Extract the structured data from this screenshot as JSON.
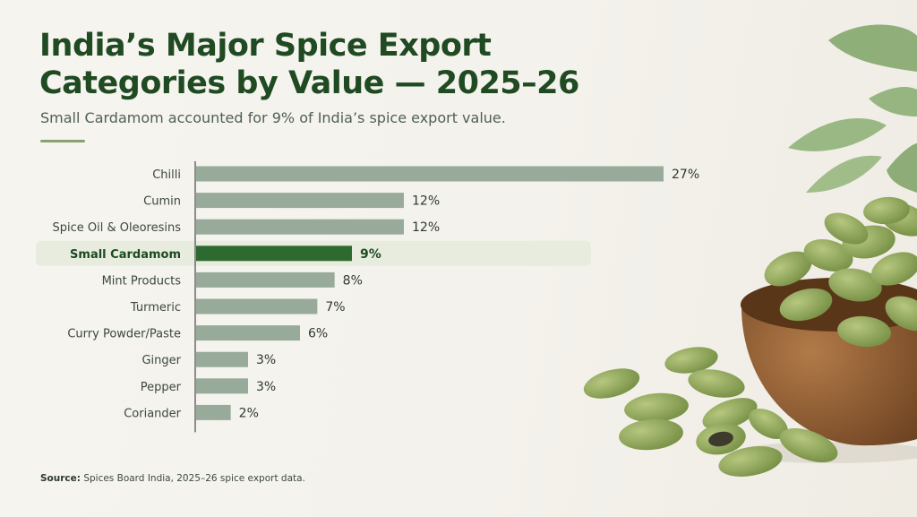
{
  "header": {
    "title": "India’s Major Spice Export Categories by Value — 2025–26",
    "subtitle": "Small Cardamom accounted for 9% of India’s spice export value."
  },
  "footer": {
    "source_label": "Source:",
    "source_text": "Spices Board India, 2025–26 spice export data."
  },
  "colors": {
    "bar": "#98ab9b",
    "highlight_bar": "#2e6a2f",
    "highlight_row": "#e7ecdf",
    "label": "#3b4740",
    "highlight_label": "#1d4a1f",
    "axis": "#555555"
  },
  "chart_data": {
    "type": "bar",
    "orientation": "horizontal",
    "categories": [
      "Chilli",
      "Cumin",
      "Spice Oil & Oleoresins",
      "Small Cardamom",
      "Mint Products",
      "Turmeric",
      "Curry Powder/Paste",
      "Ginger",
      "Pepper",
      "Coriander"
    ],
    "values": [
      27,
      12,
      12,
      9,
      8,
      7,
      6,
      3,
      3,
      2
    ],
    "value_labels": [
      "27%",
      "12%",
      "12%",
      "9%",
      "8%",
      "7%",
      "6%",
      "3%",
      "3%",
      "2%"
    ],
    "highlight": "Small Cardamom",
    "xlim": [
      0,
      27
    ],
    "grid": false,
    "legend": "none"
  }
}
